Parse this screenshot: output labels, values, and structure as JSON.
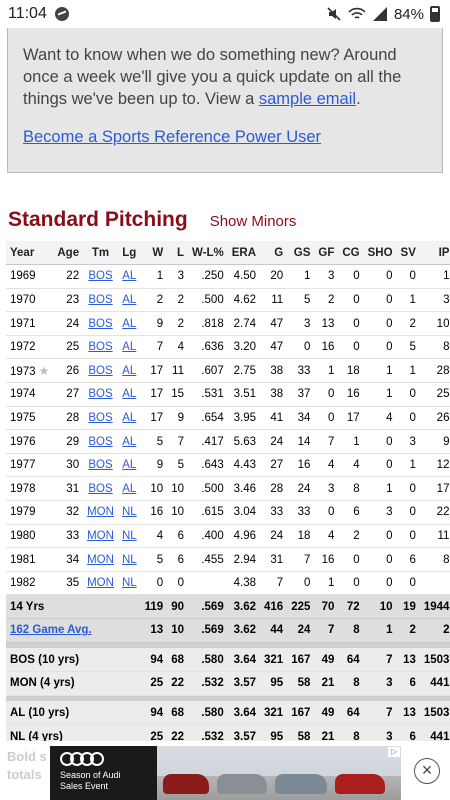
{
  "status_bar": {
    "time": "11:04",
    "battery": "84%"
  },
  "promo": {
    "text": "Want to know when we do something new? Around once a week we'll give you a quick update on all the things we've been up to. View a ",
    "link": "sample email",
    "text_end": ".",
    "power_user": "Become a Sports Reference Power User"
  },
  "section": {
    "title": "Standard Pitching",
    "toggle": "Show Minors"
  },
  "table": {
    "headers": [
      "Year",
      "Age",
      "Tm",
      "Lg",
      "W",
      "L",
      "W-L%",
      "ERA",
      "G",
      "GS",
      "GF",
      "CG",
      "SHO",
      "SV",
      "IP"
    ],
    "rows": [
      [
        "1969",
        "22",
        "BOS",
        "AL",
        "1",
        "3",
        ".250",
        "4.50",
        "20",
        "1",
        "3",
        "0",
        "0",
        "0",
        "1"
      ],
      [
        "1970",
        "23",
        "BOS",
        "AL",
        "2",
        "2",
        ".500",
        "4.62",
        "11",
        "5",
        "2",
        "0",
        "0",
        "1",
        "3"
      ],
      [
        "1971",
        "24",
        "BOS",
        "AL",
        "9",
        "2",
        ".818",
        "2.74",
        "47",
        "3",
        "13",
        "0",
        "0",
        "2",
        "10"
      ],
      [
        "1972",
        "25",
        "BOS",
        "AL",
        "7",
        "4",
        ".636",
        "3.20",
        "47",
        "0",
        "16",
        "0",
        "0",
        "5",
        "8"
      ],
      [
        "1973",
        "26",
        "BOS",
        "AL",
        "17",
        "11",
        ".607",
        "2.75",
        "38",
        "33",
        "1",
        "18",
        "1",
        "1",
        "28"
      ],
      [
        "1974",
        "27",
        "BOS",
        "AL",
        "17",
        "15",
        ".531",
        "3.51",
        "38",
        "37",
        "0",
        "16",
        "1",
        "0",
        "25"
      ],
      [
        "1975",
        "28",
        "BOS",
        "AL",
        "17",
        "9",
        ".654",
        "3.95",
        "41",
        "34",
        "0",
        "17",
        "4",
        "0",
        "26"
      ],
      [
        "1976",
        "29",
        "BOS",
        "AL",
        "5",
        "7",
        ".417",
        "5.63",
        "24",
        "14",
        "7",
        "1",
        "0",
        "3",
        "9"
      ],
      [
        "1977",
        "30",
        "BOS",
        "AL",
        "9",
        "5",
        ".643",
        "4.43",
        "27",
        "16",
        "4",
        "4",
        "0",
        "1",
        "12"
      ],
      [
        "1978",
        "31",
        "BOS",
        "AL",
        "10",
        "10",
        ".500",
        "3.46",
        "28",
        "24",
        "3",
        "8",
        "1",
        "0",
        "17"
      ],
      [
        "1979",
        "32",
        "MON",
        "NL",
        "16",
        "10",
        ".615",
        "3.04",
        "33",
        "33",
        "0",
        "6",
        "3",
        "0",
        "22"
      ],
      [
        "1980",
        "33",
        "MON",
        "NL",
        "4",
        "6",
        ".400",
        "4.96",
        "24",
        "18",
        "4",
        "2",
        "0",
        "0",
        "11"
      ],
      [
        "1981",
        "34",
        "MON",
        "NL",
        "5",
        "6",
        ".455",
        "2.94",
        "31",
        "7",
        "16",
        "0",
        "0",
        "6",
        "8"
      ],
      [
        "1982",
        "35",
        "MON",
        "NL",
        "0",
        "0",
        "",
        "4.38",
        "7",
        "0",
        "1",
        "0",
        "0",
        "0",
        ""
      ]
    ],
    "star_year": "1973",
    "totals": [
      {
        "label": "14 Yrs",
        "link": false,
        "vals": [
          "119",
          "90",
          ".569",
          "3.62",
          "416",
          "225",
          "70",
          "72",
          "10",
          "19",
          "1944"
        ]
      },
      {
        "label": "162 Game Avg.",
        "link": true,
        "vals": [
          "13",
          "10",
          ".569",
          "3.62",
          "44",
          "24",
          "7",
          "8",
          "1",
          "2",
          "2"
        ]
      }
    ],
    "team_splits": [
      {
        "label": "BOS (10 yrs)",
        "vals": [
          "94",
          "68",
          ".580",
          "3.64",
          "321",
          "167",
          "49",
          "64",
          "7",
          "13",
          "1503"
        ]
      },
      {
        "label": "MON (4 yrs)",
        "vals": [
          "25",
          "22",
          ".532",
          "3.57",
          "95",
          "58",
          "21",
          "8",
          "3",
          "6",
          "441"
        ]
      }
    ],
    "league_splits": [
      {
        "label": "AL (10 yrs)",
        "vals": [
          "94",
          "68",
          ".580",
          "3.64",
          "321",
          "167",
          "49",
          "64",
          "7",
          "13",
          "1503"
        ]
      },
      {
        "label": "NL (4 yrs)",
        "vals": [
          "25",
          "22",
          ".532",
          "3.57",
          "95",
          "58",
          "21",
          "8",
          "3",
          "6",
          "441"
        ]
      }
    ]
  },
  "footer": {
    "line1": "Bold s",
    "line2": "totals"
  },
  "ad": {
    "line1": "Season of Audi",
    "line2": "Sales Event",
    "close": "×",
    "choice": "▷"
  }
}
